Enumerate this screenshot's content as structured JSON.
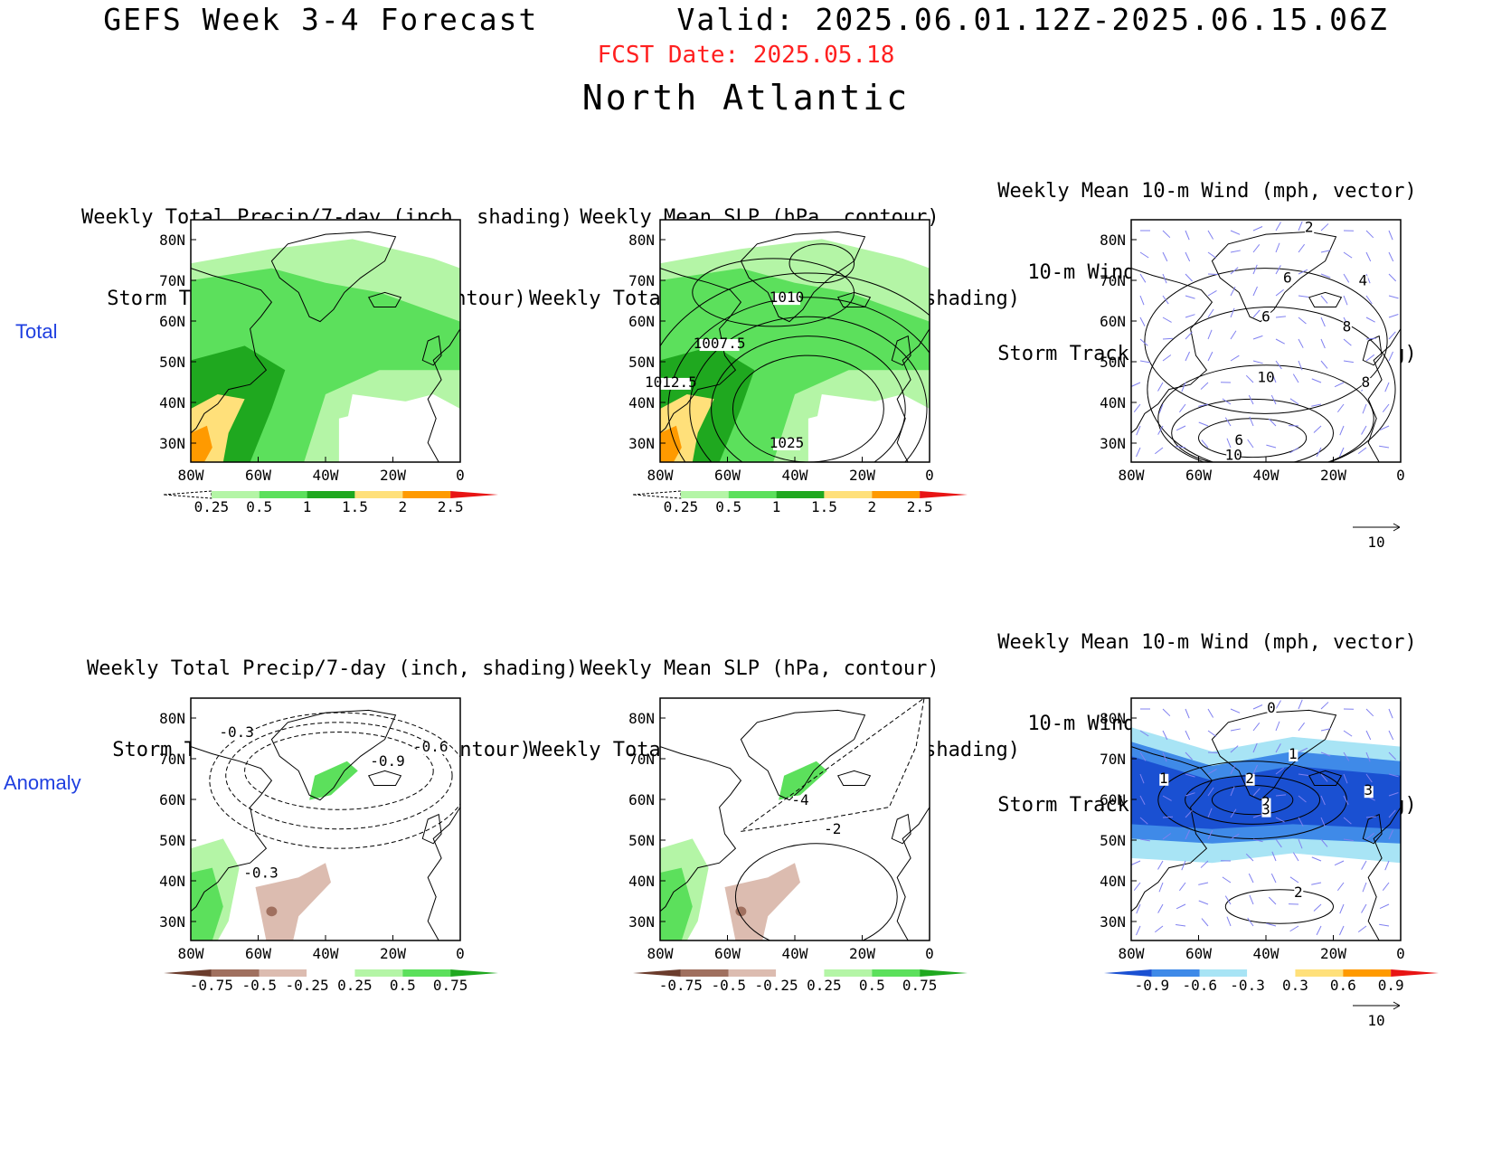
{
  "header": {
    "title": "GEFS Week 3-4 Forecast       Valid: 2025.06.01.12Z-2025.06.15.06Z",
    "fcst_date": "FCST Date: 2025.05.18",
    "region": "North Atlantic"
  },
  "row_labels": {
    "total": "Total",
    "anomaly": "Anomaly"
  },
  "axes": {
    "lat_labels": [
      "80N",
      "70N",
      "60N",
      "50N",
      "40N",
      "30N"
    ],
    "lon_labels": [
      "80W",
      "60W",
      "40W",
      "20W",
      "0"
    ]
  },
  "panels": {
    "total_precip": {
      "title": [
        "Weekly Total Precip/7-day (inch, shading)",
        "Storm Track Density/7-day (contour)"
      ],
      "colorbar": [
        "0.25",
        "0.5",
        "1",
        "1.5",
        "2",
        "2.5"
      ]
    },
    "total_slp": {
      "title": [
        "Weekly Mean SLP (hPa, contour)",
        "Weekly Total Precip/7-day (inch, shading)"
      ],
      "contour_labels": [
        "1010",
        "1007.5",
        "1012.5",
        "1025"
      ],
      "colorbar": [
        "0.25",
        "0.5",
        "1",
        "1.5",
        "2",
        "2.5"
      ]
    },
    "total_wind": {
      "title": [
        "Weekly Mean 10-m Wind (mph, vector)",
        "10-m Wind Speed (mph, contour)",
        "Storm Track Density/7-day (shading)"
      ],
      "contour_labels": [
        "2",
        "4",
        "6",
        "8",
        "6",
        "10",
        "8",
        "6",
        "10"
      ],
      "vector_ref": "10"
    },
    "anom_precip": {
      "title": [
        "Weekly Total Precip/7-day (inch, shading)",
        "Storm Track Density/7-day (contour)"
      ],
      "contour_labels": [
        "-0.3",
        "-0.9",
        "-0.6",
        "-0.3"
      ],
      "colorbar": [
        "-0.75",
        "-0.5",
        "-0.25",
        "0.25",
        "0.5",
        "0.75"
      ]
    },
    "anom_slp": {
      "title": [
        "Weekly Mean SLP (hPa, contour)",
        "Weekly Total Precip/7-day (inch, shading)"
      ],
      "contour_labels": [
        "-4",
        "-2"
      ],
      "colorbar": [
        "-0.75",
        "-0.5",
        "-0.25",
        "0.25",
        "0.5",
        "0.75"
      ]
    },
    "anom_wind": {
      "title": [
        "Weekly Mean 10-m Wind (mph, vector)",
        "10-m Wind Speed (mph, contour)",
        "Storm Track Density/7-day (shading)"
      ],
      "contour_labels": [
        "0",
        "1",
        "1",
        "2",
        "2",
        "3",
        "3",
        "2"
      ],
      "colorbar": [
        "-0.9",
        "-0.6",
        "-0.3",
        "0.3",
        "0.6",
        "0.9"
      ],
      "vector_ref": "10"
    }
  },
  "colors": {
    "precip_total_scale": [
      "#ffffff",
      "#b4f5a6",
      "#5ce05c",
      "#1fa81f",
      "#ffe07a",
      "#ff9a00",
      "#e81414"
    ],
    "precip_anom_scale": [
      "#6b3c2c",
      "#a0705f",
      "#dcbcb0",
      "#ffffff",
      "#b4f5a6",
      "#5ce05c",
      "#1fa81f"
    ],
    "storm_anom_scale": [
      "#1a50d2",
      "#3f8ae8",
      "#a8e4f5",
      "#ffffff",
      "#ffe07a",
      "#ff9a00",
      "#e81414"
    ],
    "vector": "#8080f0"
  }
}
